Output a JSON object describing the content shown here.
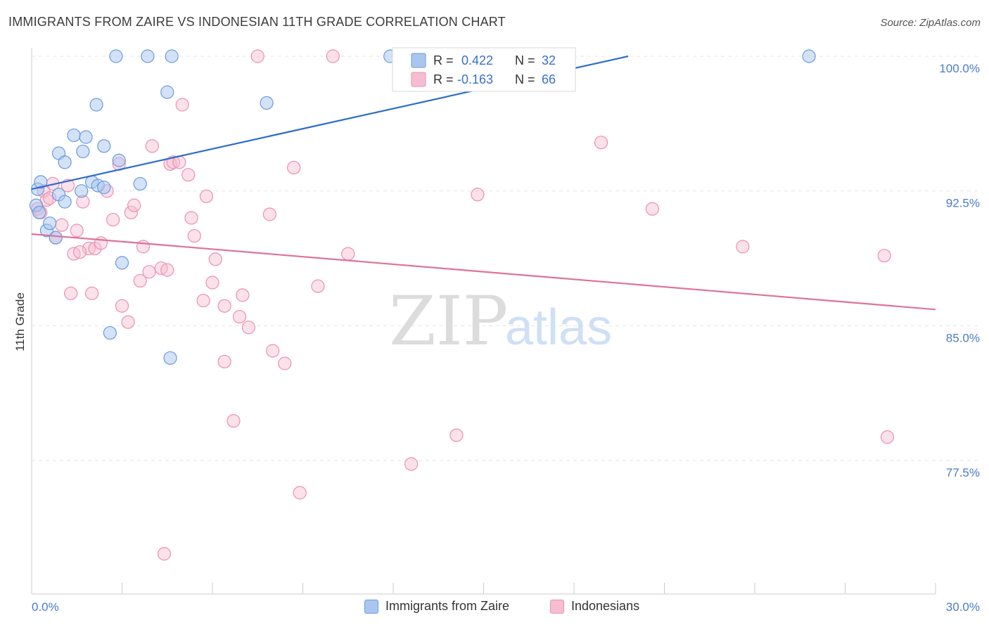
{
  "header": {
    "title": "IMMIGRANTS FROM ZAIRE VS INDONESIAN 11TH GRADE CORRELATION CHART",
    "source": "Source: ZipAtlas.com"
  },
  "watermark": {
    "zip": "ZIP",
    "atlas": "atlas"
  },
  "colors": {
    "blue_fill": "#aac6ef",
    "blue_stroke": "#6a9ae0",
    "blue_line": "#2c6dcc",
    "pink_fill": "#f6bdd0",
    "pink_stroke": "#eb90b0",
    "pink_line": "#e0719a",
    "grid": "#e4e4e4",
    "axis_text": "#4a7cc7"
  },
  "legend": {
    "r_label": "R =",
    "n_label": "N =",
    "series": [
      {
        "name": "Immigrants from Zaire",
        "r": "0.422",
        "n": "32"
      },
      {
        "name": "Indonesians",
        "r": "-0.163",
        "n": "66"
      }
    ]
  },
  "chart_data": {
    "type": "scatter",
    "title": "IMMIGRANTS FROM ZAIRE VS INDONESIAN 11TH GRADE CORRELATION CHART",
    "xlabel": "",
    "ylabel": "11th Grade",
    "xlim": [
      0,
      30
    ],
    "ylim": [
      71.5,
      100.7
    ],
    "x_tick_labels": [
      {
        "value": 0,
        "label": "0.0%"
      },
      {
        "value": 30,
        "label": "30.0%"
      }
    ],
    "y_tick_labels": [
      {
        "value": 100,
        "label": "100.0%"
      },
      {
        "value": 92.5,
        "label": "92.5%"
      },
      {
        "value": 85,
        "label": "85.0%"
      },
      {
        "value": 77.5,
        "label": "77.5%"
      }
    ],
    "grid": true,
    "legend_position": "top-center",
    "series": [
      {
        "name": "Immigrants from Zaire",
        "color": "#aac6ef",
        "trend": {
          "x": [
            0,
            19.8
          ],
          "y": [
            92.6,
            100.0
          ]
        },
        "points": [
          [
            0.2,
            92.6
          ],
          [
            0.15,
            91.7
          ],
          [
            0.25,
            91.3
          ],
          [
            0.3,
            93.0
          ],
          [
            0.5,
            90.3
          ],
          [
            0.6,
            90.7
          ],
          [
            0.8,
            89.9
          ],
          [
            0.9,
            92.3
          ],
          [
            1.1,
            91.9
          ],
          [
            0.9,
            94.6
          ],
          [
            1.1,
            94.1
          ],
          [
            1.4,
            95.6
          ],
          [
            1.8,
            95.5
          ],
          [
            1.7,
            94.7
          ],
          [
            1.65,
            92.5
          ],
          [
            2.0,
            93.0
          ],
          [
            2.2,
            92.8
          ],
          [
            2.4,
            92.7
          ],
          [
            2.15,
            97.3
          ],
          [
            2.4,
            95.0
          ],
          [
            2.9,
            94.2
          ],
          [
            3.0,
            88.5
          ],
          [
            3.6,
            92.9
          ],
          [
            2.6,
            84.6
          ],
          [
            2.8,
            100.0
          ],
          [
            3.85,
            100.0
          ],
          [
            4.65,
            100.0
          ],
          [
            4.5,
            98.0
          ],
          [
            4.6,
            83.2
          ],
          [
            7.8,
            97.4
          ],
          [
            11.9,
            100.0
          ],
          [
            25.8,
            100.0
          ]
        ]
      },
      {
        "name": "Indonesians",
        "color": "#f6bdd0",
        "trend": {
          "x": [
            0,
            30
          ],
          "y": [
            90.1,
            85.9
          ]
        },
        "points": [
          [
            0.2,
            91.5
          ],
          [
            0.3,
            91.3
          ],
          [
            0.4,
            92.5
          ],
          [
            0.5,
            92.0
          ],
          [
            0.7,
            92.9
          ],
          [
            0.8,
            89.9
          ],
          [
            1.0,
            90.6
          ],
          [
            1.2,
            92.8
          ],
          [
            1.4,
            89.0
          ],
          [
            1.5,
            90.3
          ],
          [
            1.7,
            91.9
          ],
          [
            1.9,
            89.3
          ],
          [
            2.1,
            89.3
          ],
          [
            2.3,
            89.6
          ],
          [
            2.5,
            92.5
          ],
          [
            2.7,
            90.9
          ],
          [
            2.9,
            94.0
          ],
          [
            3.0,
            86.1
          ],
          [
            3.3,
            91.3
          ],
          [
            3.4,
            91.7
          ],
          [
            3.6,
            87.5
          ],
          [
            3.7,
            89.4
          ],
          [
            3.9,
            88.0
          ],
          [
            4.0,
            95.0
          ],
          [
            4.3,
            88.2
          ],
          [
            4.5,
            88.1
          ],
          [
            4.6,
            94.0
          ],
          [
            4.7,
            94.1
          ],
          [
            4.9,
            94.1
          ],
          [
            5.0,
            97.3
          ],
          [
            5.2,
            93.4
          ],
          [
            5.3,
            91.0
          ],
          [
            5.4,
            90.0
          ],
          [
            5.7,
            86.4
          ],
          [
            5.8,
            92.2
          ],
          [
            6.0,
            87.4
          ],
          [
            6.1,
            88.7
          ],
          [
            6.4,
            86.1
          ],
          [
            6.4,
            83.0
          ],
          [
            6.7,
            79.7
          ],
          [
            6.9,
            85.5
          ],
          [
            7.0,
            86.7
          ],
          [
            7.2,
            84.9
          ],
          [
            7.5,
            100.0
          ],
          [
            7.9,
            91.2
          ],
          [
            8.0,
            83.6
          ],
          [
            8.4,
            82.9
          ],
          [
            8.7,
            93.8
          ],
          [
            8.9,
            75.7
          ],
          [
            9.5,
            87.2
          ],
          [
            10.0,
            100.0
          ],
          [
            10.5,
            89.0
          ],
          [
            1.3,
            86.8
          ],
          [
            2.0,
            86.8
          ],
          [
            3.2,
            85.2
          ],
          [
            4.4,
            72.3
          ],
          [
            12.6,
            77.3
          ],
          [
            14.1,
            78.9
          ],
          [
            14.8,
            92.3
          ],
          [
            18.9,
            95.2
          ],
          [
            20.6,
            91.5
          ],
          [
            23.6,
            89.4
          ],
          [
            28.3,
            88.9
          ],
          [
            28.4,
            78.8
          ],
          [
            0.6,
            92.1
          ],
          [
            1.6,
            89.1
          ]
        ]
      }
    ]
  },
  "bottom_legend": {
    "items": [
      {
        "name": "Immigrants from Zaire"
      },
      {
        "name": "Indonesians"
      }
    ]
  }
}
